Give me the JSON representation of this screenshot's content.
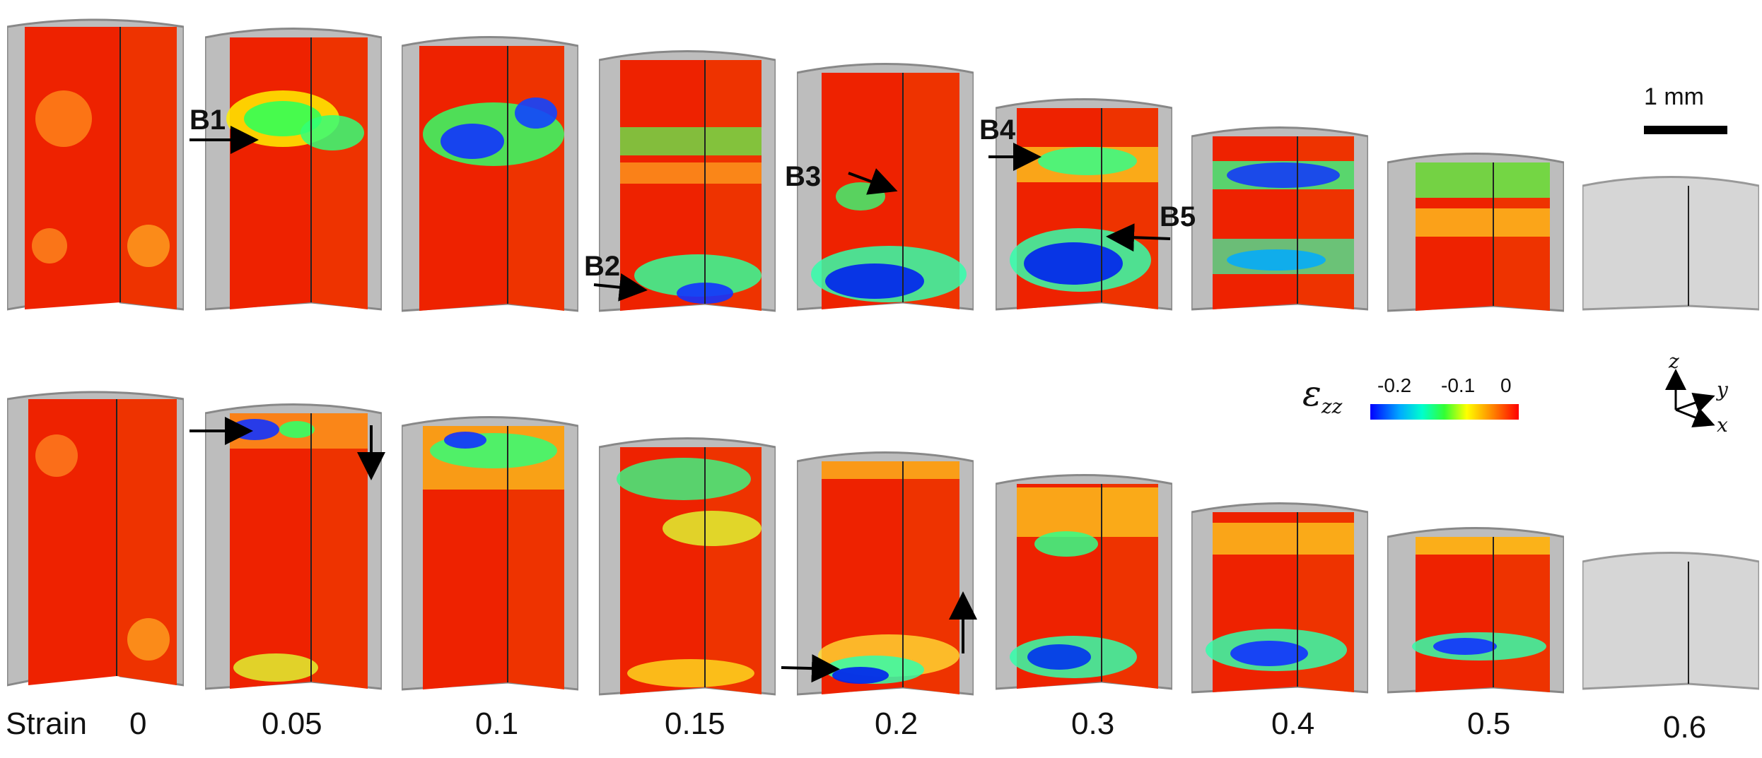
{
  "figure": {
    "row_description": [
      "top-row-specimen",
      "bottom-row-specimen"
    ],
    "band_labels": [
      "B1",
      "B2",
      "B3",
      "B4",
      "B5"
    ],
    "scale_bar": {
      "label": "1 mm"
    },
    "colorbar": {
      "symbol": "ε",
      "symbol_sub": "zz",
      "ticks": [
        "-0.2",
        "-0.1",
        "0"
      ],
      "colors": [
        "#0000ff",
        "#00aaff",
        "#00ffcc",
        "#33ff33",
        "#ffff00",
        "#ff8800",
        "#ff0000"
      ]
    },
    "axes": {
      "z": "z",
      "y": "y",
      "x": "x"
    },
    "strain_title": "Strain",
    "strains": [
      "0",
      "0.05",
      "0.1",
      "0.15",
      "0.2",
      "0.3",
      "0.4",
      "0.5",
      "0.6"
    ]
  }
}
